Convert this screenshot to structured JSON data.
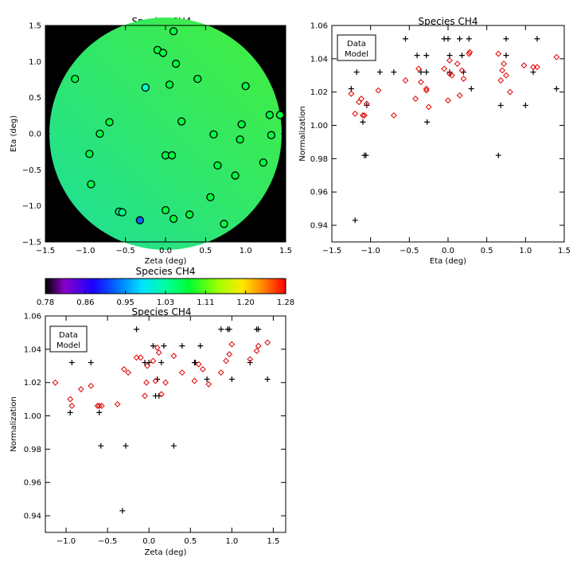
{
  "colors": {
    "data": "#000000",
    "model": "#dd0000",
    "map_background": "#000000",
    "field_low": "#1ddf9a",
    "field_high": "#44ef3a"
  },
  "colorbar": {
    "title": "Species CH4",
    "min": 0.78,
    "max": 1.28,
    "tick_labels": [
      "0.78",
      "0.86",
      "0.95",
      "1.03",
      "1.11",
      "1.20",
      "1.28"
    ],
    "colormap": "rainbow"
  },
  "chart_data": [
    {
      "id": "map",
      "type": "heatmap",
      "title": "Species CH4",
      "xlabel": "Zeta (deg)",
      "ylabel": "Eta (deg)",
      "xlim": [
        -1.5,
        1.5
      ],
      "ylim": [
        -1.5,
        1.5
      ],
      "x_ticks": [
        -1.5,
        -1.0,
        -0.5,
        0.0,
        0.5,
        1.0,
        1.5
      ],
      "y_ticks": [
        -1.5,
        -1.0,
        -0.5,
        0.0,
        0.5,
        1.0,
        1.5
      ],
      "x_tick_labels": [
        "−1.5",
        "−1.0",
        "−0.5",
        "0.0",
        "0.5",
        "1.0",
        "1.5"
      ],
      "y_tick_labels": [
        "−1.5",
        "−1.0",
        "−0.5",
        "0.0",
        "0.5",
        "1.0",
        "1.5"
      ],
      "field_radius": 1.45,
      "points": [
        {
          "zeta": 0.1,
          "eta": 1.42,
          "value": 1.03
        },
        {
          "zeta": -0.1,
          "eta": 1.16,
          "value": 1.03
        },
        {
          "zeta": -0.03,
          "eta": 1.12,
          "value": 1.03
        },
        {
          "zeta": 0.13,
          "eta": 0.97,
          "value": 1.03
        },
        {
          "zeta": -1.13,
          "eta": 0.76,
          "value": 1.03
        },
        {
          "zeta": 0.4,
          "eta": 0.76,
          "value": 1.03
        },
        {
          "zeta": 0.05,
          "eta": 0.68,
          "value": 1.03
        },
        {
          "zeta": -0.25,
          "eta": 0.64,
          "value": 0.97
        },
        {
          "zeta": 1.0,
          "eta": 0.66,
          "value": 1.03
        },
        {
          "zeta": 1.3,
          "eta": 0.26,
          "value": 1.03
        },
        {
          "zeta": 1.43,
          "eta": 0.26,
          "value": 1.03
        },
        {
          "zeta": -0.7,
          "eta": 0.16,
          "value": 1.03
        },
        {
          "zeta": 0.2,
          "eta": 0.17,
          "value": 1.03
        },
        {
          "zeta": 0.95,
          "eta": 0.13,
          "value": 1.03
        },
        {
          "zeta": -0.82,
          "eta": 0.0,
          "value": 1.03
        },
        {
          "zeta": 0.6,
          "eta": -0.01,
          "value": 1.03
        },
        {
          "zeta": 1.32,
          "eta": -0.02,
          "value": 1.03
        },
        {
          "zeta": 0.93,
          "eta": -0.08,
          "value": 1.03
        },
        {
          "zeta": -0.95,
          "eta": -0.28,
          "value": 1.03
        },
        {
          "zeta": 0.0,
          "eta": -0.3,
          "value": 1.03
        },
        {
          "zeta": 0.08,
          "eta": -0.3,
          "value": 1.03
        },
        {
          "zeta": 1.22,
          "eta": -0.4,
          "value": 1.03
        },
        {
          "zeta": 0.65,
          "eta": -0.44,
          "value": 1.03
        },
        {
          "zeta": 0.87,
          "eta": -0.58,
          "value": 1.03
        },
        {
          "zeta": -0.93,
          "eta": -0.7,
          "value": 1.03
        },
        {
          "zeta": 0.56,
          "eta": -0.88,
          "value": 1.03
        },
        {
          "zeta": -0.58,
          "eta": -1.08,
          "value": 1.0
        },
        {
          "zeta": -0.54,
          "eta": -1.09,
          "value": 1.0
        },
        {
          "zeta": 0.0,
          "eta": -1.06,
          "value": 1.03
        },
        {
          "zeta": 0.3,
          "eta": -1.12,
          "value": 1.03
        },
        {
          "zeta": 0.1,
          "eta": -1.18,
          "value": 1.03
        },
        {
          "zeta": -0.32,
          "eta": -1.2,
          "value": 0.88
        },
        {
          "zeta": 0.73,
          "eta": -1.25,
          "value": 1.03
        }
      ]
    },
    {
      "id": "eta",
      "type": "scatter",
      "title": "Species CH4",
      "xlabel": "Eta (deg)",
      "ylabel": "Normalization",
      "xlim": [
        -1.5,
        1.5
      ],
      "ylim": [
        0.93,
        1.06
      ],
      "x_ticks": [
        -1.5,
        -1.0,
        -0.5,
        0.0,
        0.5,
        1.0,
        1.5
      ],
      "y_ticks": [
        0.94,
        0.96,
        0.98,
        1.0,
        1.02,
        1.04,
        1.06
      ],
      "x_tick_labels": [
        "−1.5",
        "−1.0",
        "−0.5",
        "0.0",
        "0.5",
        "1.0",
        "1.5"
      ],
      "y_tick_labels": [
        "0.94",
        "0.96",
        "0.98",
        "1.00",
        "1.02",
        "1.04",
        "1.06"
      ],
      "legend": {
        "entries": [
          "Data",
          "Model"
        ],
        "placement": "top-left"
      },
      "series": [
        {
          "name": "Data",
          "marker": "plus",
          "x": [
            -1.25,
            -1.2,
            -1.18,
            -1.1,
            -1.08,
            -1.06,
            -1.05,
            -0.88,
            -0.7,
            -0.55,
            -0.4,
            -0.35,
            -0.28,
            -0.28,
            -0.27,
            -0.05,
            0.0,
            0.02,
            0.02,
            0.15,
            0.18,
            0.2,
            0.27,
            0.3,
            0.65,
            0.68,
            0.75,
            0.75,
            1.0,
            1.1,
            1.15,
            1.4
          ],
          "y": [
            1.022,
            0.943,
            1.032,
            1.002,
            0.982,
            0.982,
            1.012,
            1.032,
            1.032,
            1.052,
            1.042,
            1.032,
            1.042,
            1.032,
            1.002,
            1.052,
            1.052,
            1.042,
            1.032,
            1.052,
            1.042,
            1.032,
            1.052,
            1.022,
            0.982,
            1.012,
            1.042,
            1.052,
            1.012,
            1.032,
            1.052,
            1.022
          ]
        },
        {
          "name": "Model",
          "marker": "diamond",
          "x": [
            -1.25,
            -1.2,
            -1.15,
            -1.12,
            -1.1,
            -1.08,
            -1.05,
            -0.9,
            -0.7,
            -0.55,
            -0.42,
            -0.38,
            -0.35,
            -0.28,
            -0.28,
            -0.25,
            -0.05,
            0.0,
            0.02,
            0.02,
            0.05,
            0.12,
            0.15,
            0.18,
            0.2,
            0.27,
            0.28,
            0.65,
            0.68,
            0.7,
            0.72,
            0.75,
            0.8,
            0.98,
            1.1,
            1.15,
            1.4
          ],
          "y": [
            1.019,
            1.007,
            1.014,
            1.016,
            1.006,
            1.006,
            1.013,
            1.021,
            1.006,
            1.027,
            1.016,
            1.034,
            1.026,
            1.022,
            1.021,
            1.011,
            1.034,
            1.015,
            1.039,
            1.031,
            1.03,
            1.037,
            1.018,
            1.033,
            1.028,
            1.043,
            1.044,
            1.043,
            1.027,
            1.033,
            1.037,
            1.03,
            1.02,
            1.036,
            1.035,
            1.035,
            1.041
          ]
        }
      ]
    },
    {
      "id": "zeta",
      "type": "scatter",
      "title": "Species CH4",
      "xlabel": "Zeta (deg)",
      "ylabel": "Normalization",
      "xlim": [
        -1.25,
        1.65
      ],
      "ylim": [
        0.93,
        1.06
      ],
      "x_ticks": [
        -1.0,
        -0.5,
        0.0,
        0.5,
        1.0,
        1.5
      ],
      "y_ticks": [
        0.94,
        0.96,
        0.98,
        1.0,
        1.02,
        1.04,
        1.06
      ],
      "x_tick_labels": [
        "−1.0",
        "−0.5",
        "0.0",
        "0.5",
        "1.0",
        "1.5"
      ],
      "y_tick_labels": [
        "0.94",
        "0.96",
        "0.98",
        "1.00",
        "1.02",
        "1.04",
        "1.06"
      ],
      "legend": {
        "entries": [
          "Data",
          "Model"
        ],
        "placement": "top-left"
      },
      "series": [
        {
          "name": "Data",
          "marker": "plus",
          "x": [
            -0.95,
            -0.93,
            -0.82,
            -0.7,
            -0.6,
            -0.58,
            -0.32,
            -0.28,
            -0.15,
            -0.05,
            0.0,
            0.05,
            0.08,
            0.1,
            0.12,
            0.15,
            0.18,
            0.3,
            0.4,
            0.55,
            0.56,
            0.62,
            0.7,
            0.87,
            0.95,
            0.97,
            1.0,
            1.22,
            1.3,
            1.32,
            1.43
          ],
          "y": [
            1.002,
            1.032,
            1.042,
            1.032,
            1.002,
            0.982,
            0.943,
            0.982,
            1.052,
            1.032,
            1.032,
            1.042,
            1.012,
            1.022,
            1.012,
            1.032,
            1.042,
            0.982,
            1.042,
            1.032,
            1.032,
            1.042,
            1.022,
            1.052,
            1.052,
            1.052,
            1.022,
            1.032,
            1.052,
            1.052,
            1.022
          ]
        },
        {
          "name": "Model",
          "marker": "diamond",
          "x": [
            -1.13,
            -0.95,
            -0.93,
            -0.82,
            -0.7,
            -0.62,
            -0.6,
            -0.57,
            -0.38,
            -0.3,
            -0.25,
            -0.15,
            -0.1,
            -0.05,
            -0.03,
            -0.02,
            0.05,
            0.08,
            0.1,
            0.12,
            0.15,
            0.2,
            0.3,
            0.4,
            0.55,
            0.6,
            0.65,
            0.72,
            0.87,
            0.93,
            0.97,
            1.0,
            1.22,
            1.3,
            1.32,
            1.43
          ],
          "y": [
            1.02,
            1.01,
            1.006,
            1.016,
            1.018,
            1.006,
            1.006,
            1.006,
            1.007,
            1.028,
            1.026,
            1.035,
            1.035,
            1.012,
            1.02,
            1.03,
            1.033,
            1.021,
            1.041,
            1.038,
            1.013,
            1.02,
            1.036,
            1.026,
            1.021,
            1.031,
            1.028,
            1.019,
            1.026,
            1.033,
            1.037,
            1.043,
            1.034,
            1.039,
            1.042,
            1.044
          ]
        }
      ]
    }
  ]
}
